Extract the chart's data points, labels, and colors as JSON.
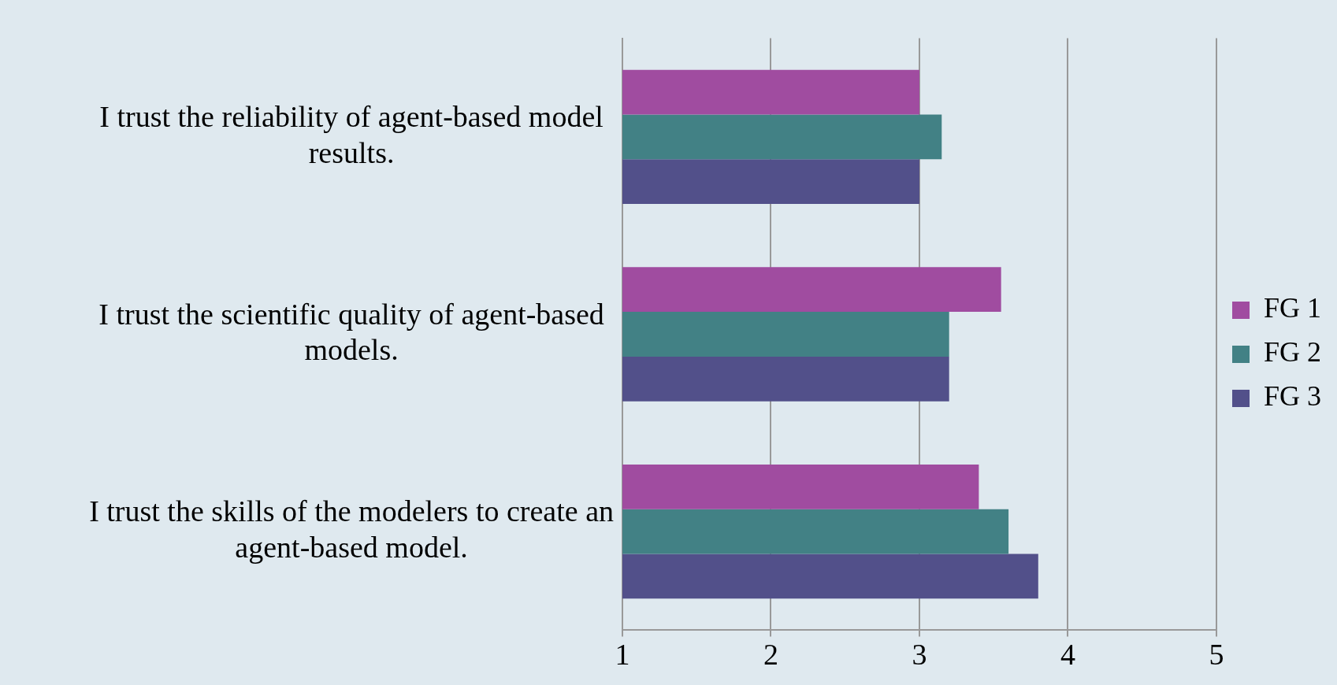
{
  "chart_data": {
    "type": "bar",
    "orientation": "horizontal",
    "categories": [
      "I trust the reliability of agent-based model results.",
      "I trust the scientific quality of agent-based models.",
      "I trust the skills of the modelers to create an agent-based model."
    ],
    "series": [
      {
        "name": "FG 1",
        "color": "#a04ca0",
        "values": [
          3.0,
          3.55,
          3.4
        ]
      },
      {
        "name": "FG 2",
        "color": "#428185",
        "values": [
          3.15,
          3.2,
          3.6
        ]
      },
      {
        "name": "FG 3",
        "color": "#52508a",
        "values": [
          3.0,
          3.2,
          3.8
        ]
      }
    ],
    "xlim": [
      1,
      5
    ],
    "xticks": [
      1,
      2,
      3,
      4,
      5
    ],
    "grid": "x",
    "legend": "right"
  }
}
